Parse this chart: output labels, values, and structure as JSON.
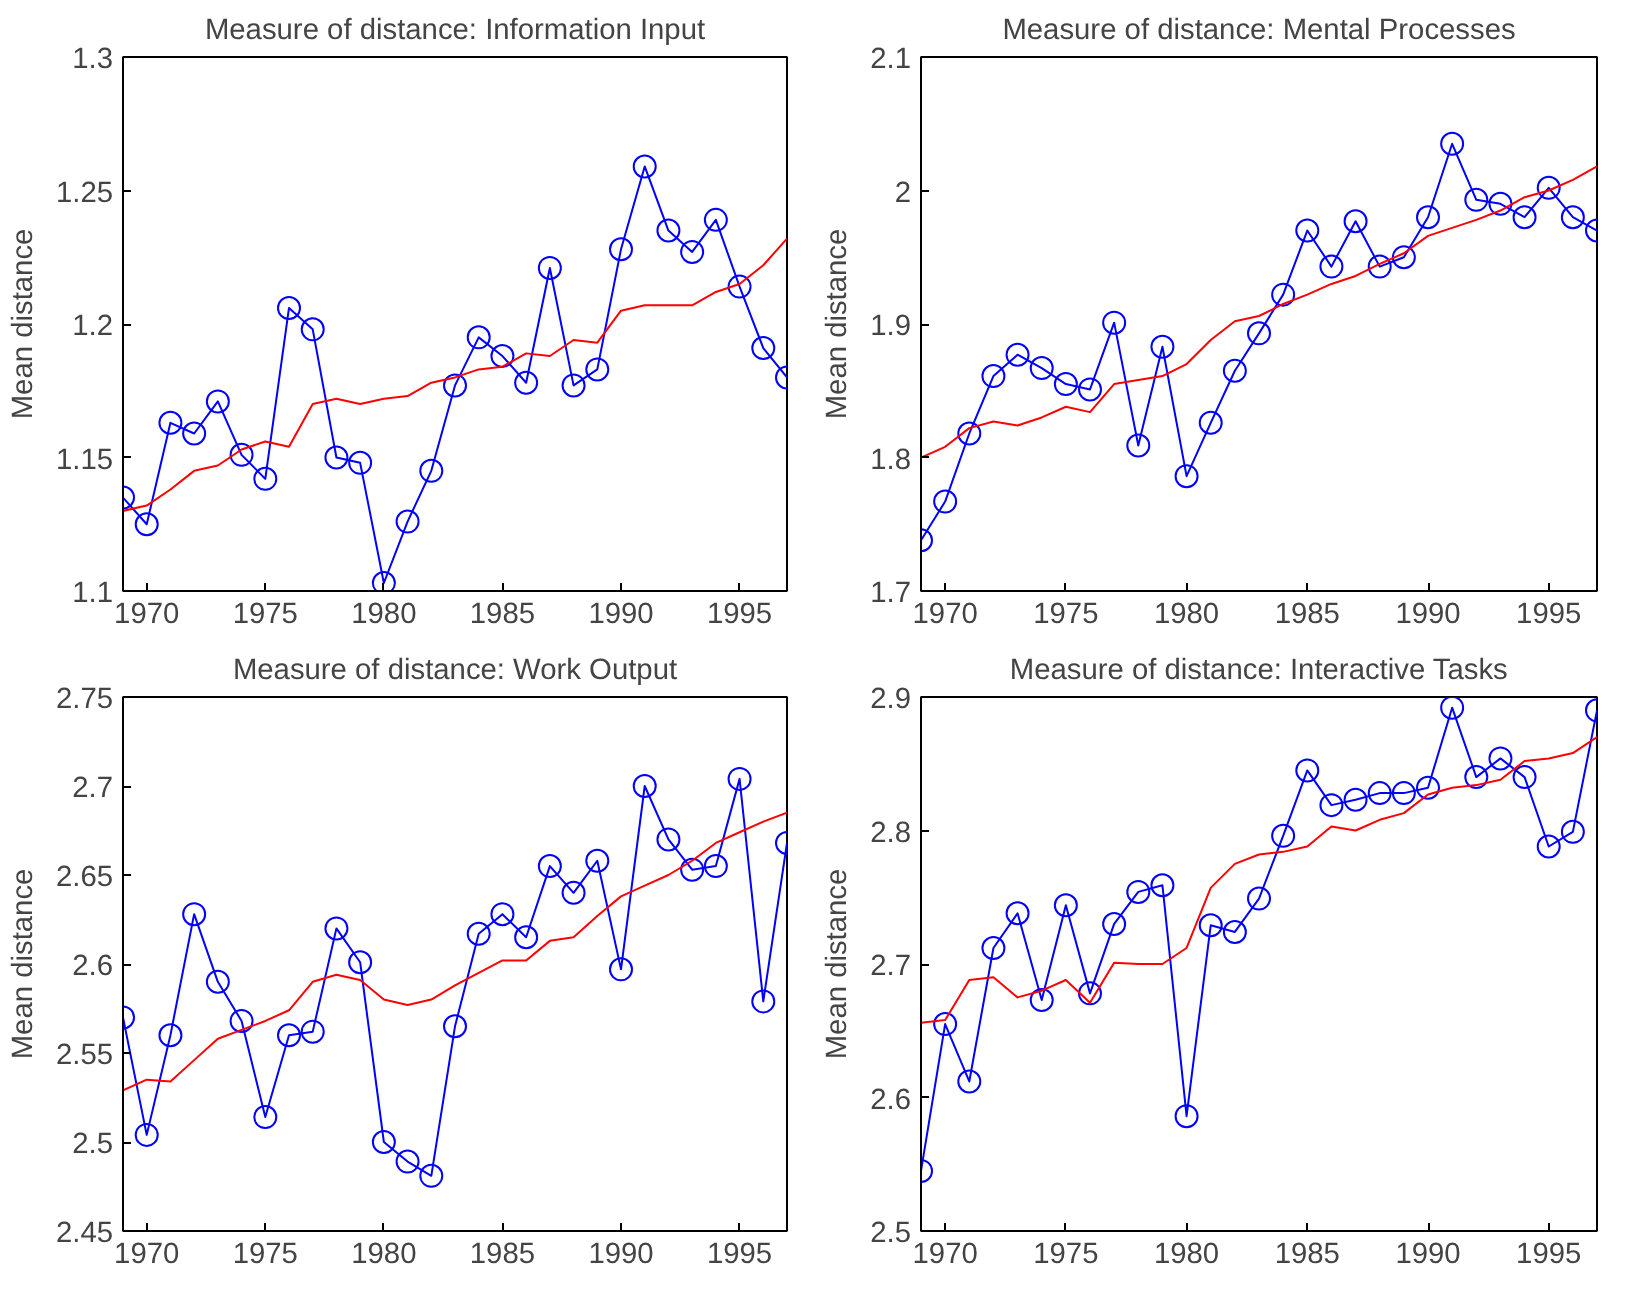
{
  "chart_data": [
    {
      "type": "line",
      "title": "Measure of distance: Information Input",
      "ylabel": "Mean distance",
      "x": [
        1969,
        1970,
        1971,
        1972,
        1973,
        1974,
        1975,
        1976,
        1977,
        1978,
        1979,
        1980,
        1981,
        1982,
        1983,
        1984,
        1985,
        1986,
        1987,
        1988,
        1989,
        1990,
        1991,
        1992,
        1993,
        1994,
        1995,
        1996,
        1997
      ],
      "xlim": [
        1969,
        1997
      ],
      "xticks": [
        1970,
        1975,
        1980,
        1985,
        1990,
        1995
      ],
      "ylim": [
        1.1,
        1.3
      ],
      "yticks": [
        1.1,
        1.15,
        1.2,
        1.25,
        1.3
      ],
      "grid": false,
      "series": [
        {
          "color": "#0000ff",
          "marker": "circle",
          "values": [
            1.135,
            1.125,
            1.163,
            1.159,
            1.171,
            1.151,
            1.142,
            1.206,
            1.198,
            1.15,
            1.148,
            1.103,
            1.126,
            1.145,
            1.177,
            1.195,
            1.188,
            1.178,
            1.221,
            1.177,
            1.183,
            1.228,
            1.259,
            1.235,
            1.227,
            1.239,
            1.214,
            1.191,
            1.18
          ]
        },
        {
          "color": "#ff0000",
          "marker": "none",
          "values": [
            1.13,
            1.132,
            1.138,
            1.145,
            1.147,
            1.153,
            1.156,
            1.154,
            1.17,
            1.172,
            1.17,
            1.172,
            1.173,
            1.178,
            1.18,
            1.183,
            1.184,
            1.189,
            1.188,
            1.194,
            1.193,
            1.205,
            1.207,
            1.207,
            1.207,
            1.212,
            1.215,
            1.222,
            1.232
          ]
        }
      ]
    },
    {
      "type": "line",
      "title": "Measure of distance: Mental Processes",
      "ylabel": "Mean distance",
      "x": [
        1969,
        1970,
        1971,
        1972,
        1973,
        1974,
        1975,
        1976,
        1977,
        1978,
        1979,
        1980,
        1981,
        1982,
        1983,
        1984,
        1985,
        1986,
        1987,
        1988,
        1989,
        1990,
        1991,
        1992,
        1993,
        1994,
        1995,
        1996,
        1997
      ],
      "xlim": [
        1969,
        1997
      ],
      "xticks": [
        1970,
        1975,
        1980,
        1985,
        1990,
        1995
      ],
      "ylim": [
        1.7,
        2.1
      ],
      "yticks": [
        1.7,
        1.8,
        1.9,
        2,
        2.1
      ],
      "grid": false,
      "series": [
        {
          "color": "#0000ff",
          "marker": "circle",
          "values": [
            1.738,
            1.767,
            1.818,
            1.861,
            1.877,
            1.867,
            1.855,
            1.851,
            1.901,
            1.809,
            1.883,
            1.786,
            1.826,
            1.865,
            1.893,
            1.922,
            1.97,
            1.943,
            1.977,
            1.943,
            1.95,
            1.98,
            2.035,
            1.993,
            1.99,
            1.98,
            2.002,
            1.98,
            1.97
          ]
        },
        {
          "color": "#ff0000",
          "marker": "none",
          "values": [
            1.8,
            1.808,
            1.822,
            1.827,
            1.824,
            1.83,
            1.838,
            1.834,
            1.855,
            1.858,
            1.861,
            1.87,
            1.888,
            1.902,
            1.906,
            1.915,
            1.922,
            1.93,
            1.936,
            1.945,
            1.953,
            1.966,
            1.972,
            1.978,
            1.985,
            1.995,
            2.0,
            2.008,
            2.018
          ]
        }
      ]
    },
    {
      "type": "line",
      "title": "Measure of distance: Work Output",
      "ylabel": "Mean distance",
      "x": [
        1969,
        1970,
        1971,
        1972,
        1973,
        1974,
        1975,
        1976,
        1977,
        1978,
        1979,
        1980,
        1981,
        1982,
        1983,
        1984,
        1985,
        1986,
        1987,
        1988,
        1989,
        1990,
        1991,
        1992,
        1993,
        1994,
        1995,
        1996,
        1997
      ],
      "xlim": [
        1969,
        1997
      ],
      "xticks": [
        1970,
        1975,
        1980,
        1985,
        1990,
        1995
      ],
      "ylim": [
        2.45,
        2.75
      ],
      "yticks": [
        2.45,
        2.5,
        2.55,
        2.6,
        2.65,
        2.7,
        2.75
      ],
      "grid": false,
      "series": [
        {
          "color": "#0000ff",
          "marker": "circle",
          "values": [
            2.57,
            2.504,
            2.56,
            2.628,
            2.59,
            2.568,
            2.514,
            2.56,
            2.562,
            2.62,
            2.601,
            2.5,
            2.489,
            2.481,
            2.565,
            2.617,
            2.628,
            2.615,
            2.655,
            2.64,
            2.658,
            2.597,
            2.7,
            2.67,
            2.653,
            2.655,
            2.704,
            2.579,
            2.668
          ]
        },
        {
          "color": "#ff0000",
          "marker": "none",
          "values": [
            2.529,
            2.535,
            2.534,
            2.546,
            2.558,
            2.563,
            2.568,
            2.574,
            2.59,
            2.594,
            2.591,
            2.58,
            2.577,
            2.58,
            2.588,
            2.595,
            2.602,
            2.602,
            2.613,
            2.615,
            2.627,
            2.638,
            2.644,
            2.65,
            2.658,
            2.668,
            2.674,
            2.68,
            2.685
          ]
        }
      ]
    },
    {
      "type": "line",
      "title": "Measure of distance: Interactive Tasks",
      "ylabel": "Mean distance",
      "x": [
        1969,
        1970,
        1971,
        1972,
        1973,
        1974,
        1975,
        1976,
        1977,
        1978,
        1979,
        1980,
        1981,
        1982,
        1983,
        1984,
        1985,
        1986,
        1987,
        1988,
        1989,
        1990,
        1991,
        1992,
        1993,
        1994,
        1995,
        1996,
        1997
      ],
      "xlim": [
        1969,
        1997
      ],
      "xticks": [
        1970,
        1975,
        1980,
        1985,
        1990,
        1995
      ],
      "ylim": [
        2.5,
        2.9
      ],
      "yticks": [
        2.5,
        2.6,
        2.7,
        2.8,
        2.9
      ],
      "grid": false,
      "series": [
        {
          "color": "#0000ff",
          "marker": "circle",
          "values": [
            2.545,
            2.655,
            2.612,
            2.712,
            2.738,
            2.673,
            2.744,
            2.678,
            2.73,
            2.754,
            2.759,
            2.586,
            2.729,
            2.724,
            2.749,
            2.796,
            2.845,
            2.819,
            2.823,
            2.828,
            2.828,
            2.832,
            2.892,
            2.84,
            2.854,
            2.84,
            2.788,
            2.799,
            2.89
          ]
        },
        {
          "color": "#ff0000",
          "marker": "none",
          "values": [
            2.656,
            2.658,
            2.688,
            2.69,
            2.675,
            2.68,
            2.688,
            2.671,
            2.701,
            2.7,
            2.7,
            2.712,
            2.757,
            2.775,
            2.782,
            2.784,
            2.788,
            2.803,
            2.8,
            2.808,
            2.813,
            2.827,
            2.832,
            2.834,
            2.838,
            2.852,
            2.854,
            2.858,
            2.87
          ]
        }
      ]
    }
  ]
}
